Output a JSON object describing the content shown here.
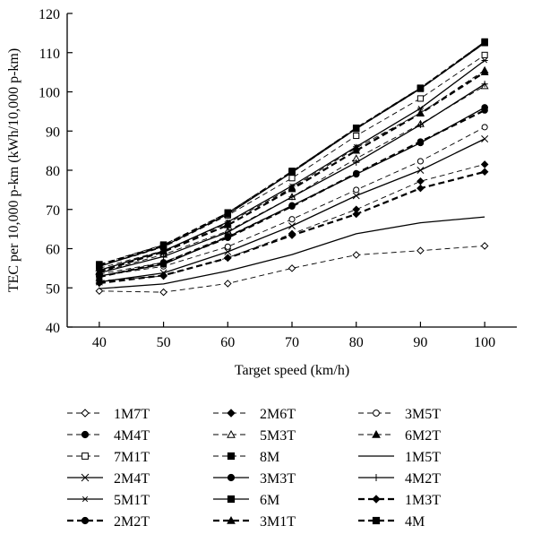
{
  "chart_data": {
    "type": "line",
    "title": "",
    "xlabel": "Target speed (km/h)",
    "ylabel": "TEC per 10,000 p-km (kWh/10,000 p-km)",
    "x": [
      40,
      50,
      60,
      70,
      80,
      90,
      100
    ],
    "xlim": [
      35,
      105
    ],
    "ylim": [
      40,
      120
    ],
    "xticks": [
      40,
      50,
      60,
      70,
      80,
      90,
      100
    ],
    "yticks": [
      40,
      50,
      60,
      70,
      80,
      90,
      100,
      110,
      120
    ],
    "grid": false,
    "legend_position": "bottom",
    "series": [
      {
        "name": "1M7T",
        "marker": "diamond-open",
        "line": "dashed",
        "values": [
          49.2,
          48.9,
          51.1,
          55.0,
          58.4,
          59.5,
          60.7
        ]
      },
      {
        "name": "2M6T",
        "marker": "diamond-filled",
        "line": "dashed",
        "values": [
          51.8,
          53.0,
          57.7,
          63.8,
          70.0,
          77.2,
          81.5
        ]
      },
      {
        "name": "3M5T",
        "marker": "circle-open",
        "line": "dashed",
        "values": [
          53.0,
          55.5,
          60.5,
          67.5,
          75.0,
          82.3,
          91.0
        ]
      },
      {
        "name": "4M4T",
        "marker": "circle-filled",
        "line": "dashed",
        "values": [
          53.5,
          56.5,
          63.2,
          71.0,
          79.0,
          87.0,
          96.0
        ]
      },
      {
        "name": "5M3T",
        "marker": "triangle-open",
        "line": "dashed",
        "values": [
          54.0,
          58.5,
          64.5,
          73.2,
          83.0,
          91.8,
          101.5
        ]
      },
      {
        "name": "6M2T",
        "marker": "triangle-filled",
        "line": "dashed",
        "values": [
          55.0,
          59.5,
          66.5,
          75.6,
          85.7,
          94.6,
          105.5
        ]
      },
      {
        "name": "7M1T",
        "marker": "square-open",
        "line": "dashed",
        "values": [
          55.5,
          60.4,
          68.5,
          78.0,
          88.8,
          98.3,
          109.4
        ]
      },
      {
        "name": "8M",
        "marker": "square-filled",
        "line": "dashed",
        "values": [
          56.0,
          61.0,
          69.2,
          79.8,
          90.8,
          101.0,
          112.8
        ]
      },
      {
        "name": "1M5T",
        "marker": "none",
        "line": "solid",
        "values": [
          49.8,
          51.0,
          54.3,
          58.5,
          63.8,
          66.6,
          68.1
        ]
      },
      {
        "name": "2M4T",
        "marker": "x",
        "line": "solid",
        "values": [
          51.5,
          53.8,
          59.2,
          65.8,
          73.5,
          80.0,
          88.0
        ]
      },
      {
        "name": "3M3T",
        "marker": "circle-filled",
        "line": "solid",
        "values": [
          53.0,
          56.0,
          63.0,
          71.0,
          79.0,
          87.0,
          96.0
        ]
      },
      {
        "name": "4M2T",
        "marker": "plus",
        "line": "solid",
        "values": [
          53.8,
          58.0,
          64.2,
          73.2,
          82.0,
          91.6,
          102.0
        ]
      },
      {
        "name": "5M1T",
        "marker": "asterisk",
        "line": "solid",
        "values": [
          54.5,
          59.4,
          66.8,
          76.0,
          86.0,
          95.8,
          108.0
        ]
      },
      {
        "name": "6M",
        "marker": "square-filled",
        "line": "solid",
        "values": [
          55.5,
          60.6,
          68.8,
          79.5,
          90.6,
          100.8,
          112.5
        ]
      },
      {
        "name": "1M3T",
        "marker": "diamond-filled",
        "line": "bold-dashed",
        "values": [
          51.2,
          53.2,
          57.6,
          63.4,
          68.8,
          75.4,
          79.6
        ]
      },
      {
        "name": "2M2T",
        "marker": "circle-filled",
        "line": "bold-dashed",
        "values": [
          52.8,
          56.4,
          62.8,
          70.8,
          79.2,
          87.3,
          95.3
        ]
      },
      {
        "name": "3M1T",
        "marker": "triangle-filled",
        "line": "bold-dashed",
        "values": [
          54.2,
          59.2,
          66.0,
          75.2,
          85.0,
          94.5,
          105.0
        ]
      },
      {
        "name": "4M",
        "marker": "square-filled",
        "line": "bold-dashed",
        "values": [
          55.8,
          60.8,
          69.0,
          79.6,
          90.7,
          100.9,
          112.6
        ]
      }
    ]
  }
}
